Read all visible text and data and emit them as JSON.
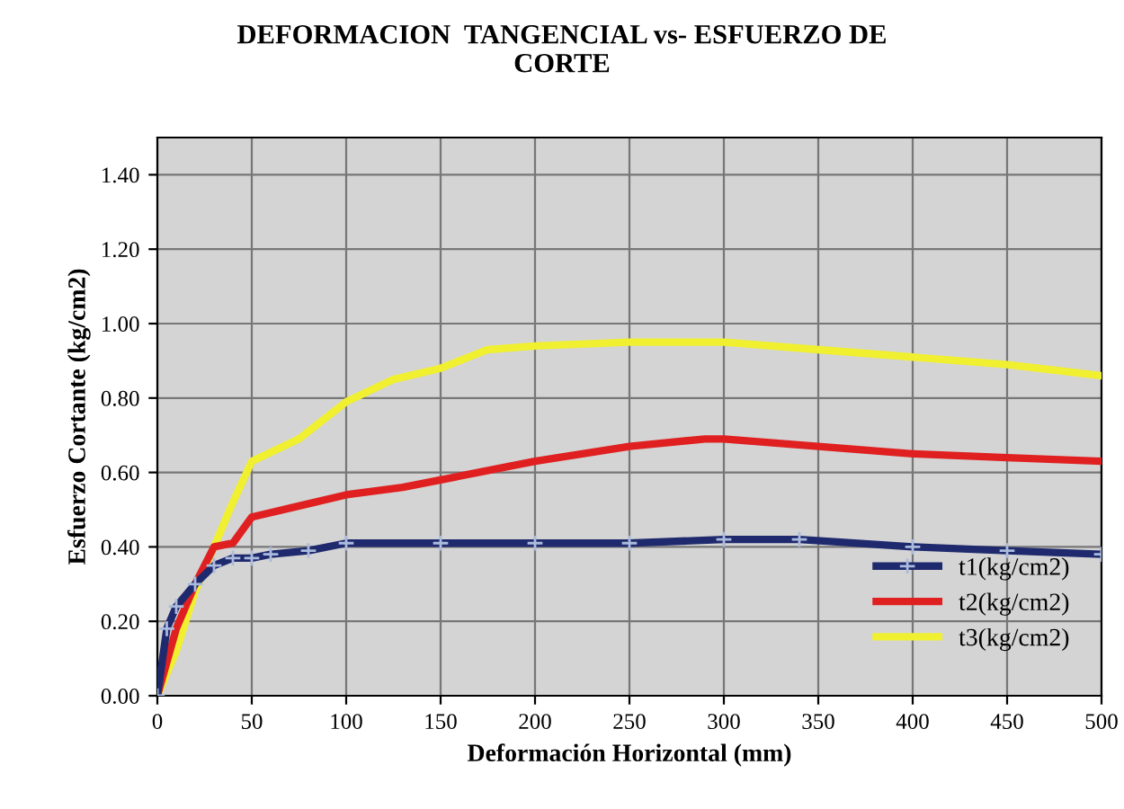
{
  "chart_data": {
    "type": "line",
    "title": "DEFORMACION  TANGENCIAL vs- ESFUERZO DE\nCORTE",
    "xlabel": "Deformación Horizontal (mm)",
    "ylabel": "Esfuerzo Cortante (kg/cm2)",
    "xlim": [
      0,
      500
    ],
    "xticks": [
      0,
      50,
      100,
      150,
      200,
      250,
      300,
      350,
      400,
      450,
      500
    ],
    "ylim": [
      0,
      1.5
    ],
    "yticks": [
      {
        "value": 0,
        "label": "0.00"
      },
      {
        "value": 0.2,
        "label": "0.20"
      },
      {
        "value": 0.4,
        "label": "0.40"
      },
      {
        "value": 0.6,
        "label": "0.60"
      },
      {
        "value": 0.8,
        "label": "0.80"
      },
      {
        "value": 1.0,
        "label": "1.00"
      },
      {
        "value": 1.2,
        "label": "1.20"
      },
      {
        "value": 1.4,
        "label": "1.40"
      }
    ],
    "grid": true,
    "legend": "bottom right",
    "line_style": "solid",
    "series": [
      {
        "name": "t1(kg/cm2)",
        "color": "#1f2a6e",
        "marker": "cross",
        "x": [
          0,
          5,
          10,
          20,
          30,
          40,
          50,
          60,
          80,
          100,
          150,
          200,
          250,
          300,
          340,
          400,
          450,
          500
        ],
        "values": [
          0,
          0.18,
          0.24,
          0.3,
          0.35,
          0.37,
          0.37,
          0.38,
          0.39,
          0.41,
          0.41,
          0.41,
          0.41,
          0.42,
          0.42,
          0.4,
          0.39,
          0.38
        ]
      },
      {
        "name": "t2(kg/cm2)",
        "color": "#e02020",
        "x": [
          0,
          10,
          20,
          30,
          40,
          50,
          75,
          100,
          130,
          150,
          200,
          250,
          290,
          300,
          350,
          400,
          450,
          500
        ],
        "values": [
          0,
          0.18,
          0.3,
          0.4,
          0.41,
          0.48,
          0.51,
          0.54,
          0.56,
          0.58,
          0.63,
          0.67,
          0.69,
          0.69,
          0.67,
          0.65,
          0.64,
          0.63
        ]
      },
      {
        "name": "t3(kg/cm2)",
        "color": "#f0f030",
        "x": [
          0,
          10,
          20,
          30,
          40,
          50,
          75,
          100,
          125,
          150,
          175,
          200,
          250,
          300,
          350,
          400,
          450,
          500
        ],
        "values": [
          0,
          0.12,
          0.28,
          0.4,
          0.52,
          0.63,
          0.69,
          0.79,
          0.85,
          0.88,
          0.93,
          0.94,
          0.95,
          0.95,
          0.93,
          0.91,
          0.89,
          0.86
        ]
      }
    ]
  }
}
